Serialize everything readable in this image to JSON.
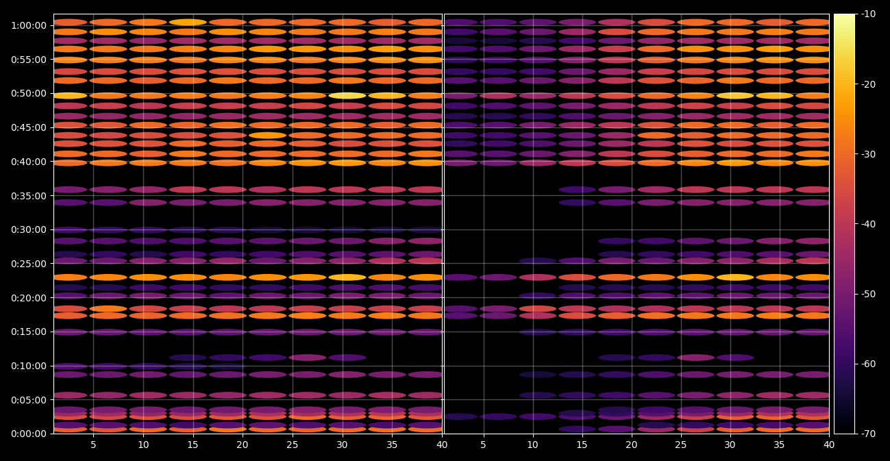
{
  "chart_data": {
    "type": "heatmap",
    "x": [
      2.5,
      6.5,
      10.5,
      14.5,
      18.5,
      22.5,
      26.5,
      30.5,
      34.5,
      38.5
    ],
    "y": [
      40,
      75,
      150,
      180,
      210,
      338,
      520,
      592,
      670,
      894,
      1039,
      1100,
      1214,
      1287,
      1377,
      1522,
      1580,
      1697,
      1794,
      2036,
      2150,
      2386,
      2465,
      2555,
      2628,
      2718,
      2797,
      2888,
      2978,
      3111,
      3190,
      3292,
      3389,
      3461,
      3540,
      3625
    ],
    "xlim": [
      1,
      40
    ],
    "ylim": [
      0,
      3700
    ],
    "xticks": [
      5,
      10,
      15,
      20,
      25,
      30,
      35,
      40
    ],
    "yticks": [
      {
        "value": 0,
        "label": "0:00:00"
      },
      {
        "value": 300,
        "label": "0:05:00"
      },
      {
        "value": 600,
        "label": "0:10:00"
      },
      {
        "value": 900,
        "label": "0:15:00"
      },
      {
        "value": 1200,
        "label": "0:20:00"
      },
      {
        "value": 1500,
        "label": "0:25:00"
      },
      {
        "value": 1800,
        "label": "0:30:00"
      },
      {
        "value": 2100,
        "label": "0:35:00"
      },
      {
        "value": 2400,
        "label": "0:40:00"
      },
      {
        "value": 2700,
        "label": "0:45:00"
      },
      {
        "value": 3000,
        "label": "0:50:00"
      },
      {
        "value": 3300,
        "label": "0:55:00"
      },
      {
        "value": 3600,
        "label": "1:00:00"
      }
    ],
    "grid": true,
    "colorbar": {
      "range": [
        -70,
        -10
      ],
      "ticks": [
        -70,
        -60,
        -50,
        -40,
        -30,
        -20,
        -10
      ],
      "color": "inferno"
    },
    "panels": [
      {
        "tick_labels": true,
        "cells": [
          [
            -32,
            -33,
            -30,
            -32,
            -28,
            -30,
            -31,
            -30,
            -29,
            -30
          ],
          [
            -55,
            -55,
            -56,
            -58,
            -55,
            -54,
            -56,
            -55,
            -57,
            -55
          ],
          [
            -35,
            -36,
            -34,
            -35,
            -33,
            -34,
            -30,
            -32,
            -31,
            -33
          ],
          [
            -45,
            -44,
            -46,
            -45,
            -44,
            -42,
            -43,
            -42,
            -40,
            -42
          ],
          [
            -52,
            -50,
            -50,
            -52,
            -51,
            -50,
            -48,
            -50,
            -49,
            -50
          ],
          [
            -45,
            -46,
            -44,
            -45,
            -46,
            -44,
            -44,
            -45,
            -43,
            -44
          ],
          [
            -52,
            -52,
            -51,
            -53,
            -52,
            -50,
            -50,
            -48,
            -50,
            -50
          ],
          [
            -56,
            -58,
            -60,
            -62,
            -64,
            null,
            null,
            null,
            null,
            null
          ],
          [
            null,
            null,
            null,
            -62,
            -60,
            -58,
            -48,
            -56,
            null,
            null
          ],
          [
            -52,
            -53,
            -54,
            -55,
            -54,
            -53,
            -52,
            -52,
            -52,
            -53
          ],
          [
            -32,
            -30,
            -31,
            -30,
            -29,
            -28,
            -27,
            -28,
            -27,
            -28
          ],
          [
            -35,
            -28,
            -36,
            -38,
            -40,
            -40,
            -38,
            -38,
            -38,
            -38
          ],
          [
            -55,
            -52,
            -50,
            -52,
            -54,
            -52,
            -52,
            -50,
            -50,
            -52
          ],
          [
            -62,
            -62,
            -58,
            -58,
            -60,
            -60,
            -58,
            -56,
            -56,
            -57
          ],
          [
            -27,
            -26,
            -25,
            -25,
            -26,
            -25,
            -24,
            -20,
            -26,
            -25
          ],
          [
            -52,
            -52,
            -48,
            -48,
            -46,
            -52,
            -48,
            -47,
            -42,
            -40
          ],
          [
            -62,
            -60,
            -62,
            -58,
            -60,
            -58,
            -56,
            -55,
            -54,
            -52
          ],
          [
            -55,
            -55,
            -56,
            -56,
            -55,
            -54,
            -52,
            -52,
            -48,
            -47
          ],
          [
            -58,
            -60,
            -60,
            -62,
            -62,
            -64,
            -64,
            -64,
            -64,
            -64
          ],
          [
            -55,
            -55,
            -48,
            -50,
            -50,
            -48,
            -48,
            -48,
            -48,
            -48
          ],
          [
            -50,
            -48,
            -46,
            -40,
            -40,
            -42,
            -40,
            -40,
            -40,
            -40
          ],
          [
            -30,
            -28,
            -28,
            -28,
            -29,
            -26,
            -25,
            -24,
            -26,
            -25
          ],
          [
            -30,
            -30,
            -32,
            -28,
            -30,
            -30,
            -30,
            -30,
            -30,
            -28
          ],
          [
            -34,
            -34,
            -34,
            -30,
            -32,
            -30,
            -32,
            -35,
            -34,
            -34
          ],
          [
            -35,
            -36,
            -35,
            -35,
            -34,
            -24,
            -30,
            -30,
            -30,
            -30
          ],
          [
            -34,
            -33,
            -30,
            -31,
            -29,
            -30,
            -30,
            -30,
            -32,
            -30
          ],
          [
            -45,
            -46,
            -46,
            -46,
            -45,
            -44,
            -44,
            -44,
            -44,
            -44
          ],
          [
            -40,
            -38,
            -40,
            -38,
            -38,
            -38,
            -36,
            -38,
            -35,
            -36
          ],
          [
            -20,
            -28,
            -28,
            -27,
            -28,
            -27,
            -26,
            -16,
            -20,
            -27
          ],
          [
            -30,
            -30,
            -32,
            -30,
            -28,
            -30,
            -30,
            -28,
            -30,
            -30
          ],
          [
            -36,
            -35,
            -35,
            -34,
            -34,
            -35,
            -35,
            -35,
            -35,
            -35
          ],
          [
            -26,
            -27,
            -27,
            -28,
            -26,
            -26,
            -28,
            -26,
            -25,
            -25
          ],
          [
            -28,
            -28,
            -28,
            -27,
            -26,
            -24,
            -24,
            -25,
            -23,
            -25
          ],
          [
            -44,
            -44,
            -46,
            -44,
            -44,
            -44,
            -44,
            -44,
            -44,
            -44
          ],
          [
            -28,
            -25,
            -26,
            -28,
            -25,
            -26,
            -28,
            -28,
            -27,
            -28
          ],
          [
            -32,
            -30,
            -28,
            -22,
            -30,
            -30,
            -30,
            -30,
            -32,
            -30
          ]
        ]
      },
      {
        "tick_labels": "x",
        "cells": [
          [
            null,
            null,
            null,
            -60,
            -55,
            -45,
            -38,
            -32,
            -30,
            -30
          ],
          [
            null,
            null,
            null,
            null,
            null,
            -62,
            -60,
            -58,
            -57,
            -55
          ],
          [
            -62,
            -60,
            -58,
            -56,
            -52,
            -45,
            -38,
            -32,
            -31,
            -33
          ],
          [
            null,
            null,
            null,
            -62,
            -60,
            -55,
            -50,
            -45,
            -42,
            -42
          ],
          [
            null,
            null,
            null,
            null,
            -62,
            -58,
            -55,
            -52,
            -50,
            -50
          ],
          [
            null,
            null,
            -62,
            -60,
            -58,
            -55,
            -50,
            -47,
            -44,
            -44
          ],
          [
            null,
            null,
            -64,
            -62,
            -60,
            -56,
            -52,
            -50,
            -50,
            -50
          ],
          [
            null,
            null,
            null,
            null,
            null,
            null,
            null,
            null,
            null,
            null
          ],
          [
            null,
            null,
            null,
            null,
            -62,
            -60,
            -48,
            -56,
            null,
            null
          ],
          [
            null,
            null,
            -62,
            -60,
            -58,
            -56,
            -54,
            -53,
            -53,
            -53
          ],
          [
            -55,
            -52,
            -42,
            -35,
            -32,
            -29,
            -28,
            -28,
            -27,
            -28
          ],
          [
            -55,
            -50,
            -36,
            -40,
            -42,
            -42,
            -40,
            -40,
            -40,
            -40
          ],
          [
            null,
            null,
            -60,
            -56,
            -56,
            -54,
            -54,
            -52,
            -52,
            -52
          ],
          [
            null,
            null,
            null,
            -62,
            -62,
            -62,
            -60,
            -58,
            -58,
            -58
          ],
          [
            -55,
            -52,
            -42,
            -35,
            -30,
            -28,
            -25,
            -20,
            -26,
            -25
          ],
          [
            null,
            null,
            -62,
            -56,
            -50,
            -52,
            -48,
            -47,
            -43,
            -40
          ],
          [
            null,
            null,
            null,
            null,
            -62,
            -60,
            -58,
            -56,
            -55,
            -52
          ],
          [
            null,
            null,
            null,
            null,
            -60,
            -58,
            -54,
            -52,
            -48,
            -47
          ],
          [
            null,
            null,
            null,
            null,
            null,
            null,
            null,
            null,
            null,
            null
          ],
          [
            null,
            null,
            null,
            -60,
            -55,
            -50,
            -48,
            -48,
            -48,
            -48
          ],
          [
            null,
            null,
            null,
            -58,
            -50,
            -44,
            -40,
            -40,
            -40,
            -40
          ],
          [
            -50,
            -52,
            -45,
            -40,
            -35,
            -30,
            -26,
            -24,
            -26,
            -25
          ],
          [
            -55,
            -55,
            -52,
            -48,
            -40,
            -35,
            -32,
            -30,
            -30,
            -28
          ],
          [
            -60,
            -58,
            -56,
            -52,
            -45,
            -40,
            -34,
            -35,
            -34,
            -34
          ],
          [
            -58,
            -58,
            -55,
            -52,
            -45,
            -30,
            -32,
            -30,
            -30,
            -30
          ],
          [
            -56,
            -55,
            -50,
            -45,
            -40,
            -34,
            -30,
            -30,
            -32,
            -30
          ],
          [
            -62,
            -62,
            -60,
            -56,
            -52,
            -48,
            -45,
            -44,
            -44,
            -44
          ],
          [
            -58,
            -56,
            -54,
            -50,
            -45,
            -40,
            -37,
            -38,
            -35,
            -36
          ],
          [
            -50,
            -42,
            -45,
            -40,
            -35,
            -30,
            -26,
            -18,
            -20,
            -27
          ],
          [
            -55,
            -55,
            -52,
            -48,
            -40,
            -34,
            -31,
            -28,
            -30,
            -30
          ],
          [
            -60,
            -60,
            -58,
            -52,
            -45,
            -38,
            -36,
            -35,
            -35,
            -35
          ],
          [
            -60,
            -58,
            -55,
            -48,
            -40,
            -32,
            -28,
            -26,
            -25,
            -25
          ],
          [
            -58,
            -56,
            -52,
            -45,
            -38,
            -30,
            -25,
            -25,
            -23,
            -25
          ],
          [
            -64,
            -64,
            -62,
            -58,
            -52,
            -46,
            -44,
            -44,
            -44,
            -44
          ],
          [
            -58,
            -55,
            -52,
            -45,
            -35,
            -30,
            -28,
            -28,
            -27,
            -28
          ],
          [
            -56,
            -56,
            -54,
            -50,
            -42,
            -35,
            -30,
            -30,
            -32,
            -30
          ]
        ]
      }
    ]
  }
}
